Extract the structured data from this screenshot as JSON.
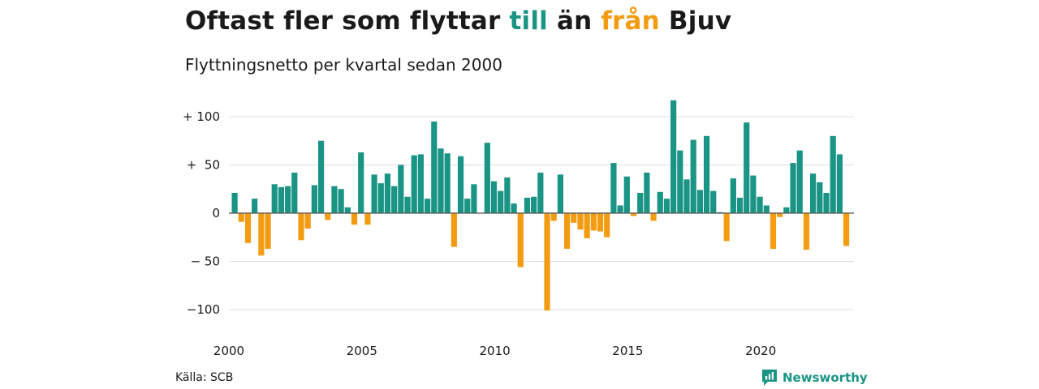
{
  "header": {
    "title_part1": "Oftast fler som flyttar ",
    "title_till": "till",
    "title_part2": " än ",
    "title_fran": "från",
    "title_part3": " Bjuv",
    "subtitle": "Flyttningsnetto per kvartal sedan 2000"
  },
  "footer": {
    "source": "Källa: SCB",
    "brand": "Newsworthy",
    "brand_icon": "newsworthy-logo-icon"
  },
  "colors": {
    "positive": "#1a9485",
    "negative": "#f39c12",
    "grid": "#dddddd",
    "zero_line": "#555555"
  },
  "chart_data": {
    "type": "bar",
    "title": "Oftast fler som flyttar till än från Bjuv",
    "subtitle": "Flyttningsnetto per kvartal sedan 2000",
    "x_start": "2000-Q1",
    "x_tick_labels": [
      "2000",
      "2005",
      "2010",
      "2015",
      "2020"
    ],
    "y_ticks": [
      100,
      50,
      0,
      -50,
      -100
    ],
    "y_tick_labels": [
      "+ 100",
      "+  50",
      "0",
      "− 50",
      "−100"
    ],
    "ylim": [
      -105,
      120
    ],
    "grid": true,
    "legend": "none",
    "values": [
      21,
      -9,
      -31,
      15,
      -44,
      -37,
      30,
      27,
      28,
      42,
      -28,
      -16,
      29,
      75,
      -7,
      28,
      25,
      6,
      -12,
      63,
      -12,
      40,
      31,
      41,
      28,
      50,
      17,
      60,
      61,
      15,
      95,
      67,
      62,
      -35,
      59,
      15,
      30,
      0,
      73,
      33,
      23,
      37,
      10,
      -56,
      16,
      17,
      42,
      -101,
      -8,
      40,
      -37,
      -10,
      -17,
      -26,
      -18,
      -19,
      -25,
      52,
      8,
      38,
      -3,
      21,
      42,
      -8,
      22,
      15,
      117,
      65,
      35,
      76,
      24,
      80,
      23,
      1,
      -29,
      36,
      16,
      94,
      39,
      17,
      8,
      -37,
      -4,
      6,
      52,
      65,
      -38,
      41,
      32,
      21,
      80,
      61,
      -34
    ]
  }
}
